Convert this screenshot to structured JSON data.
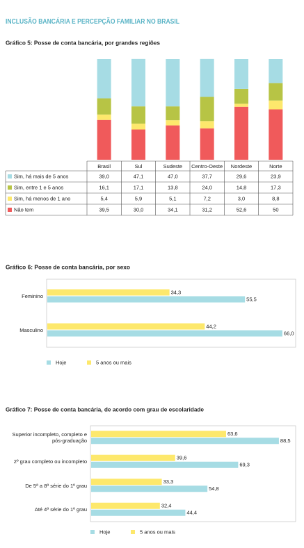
{
  "header": {
    "title": "INCLUSÃO BANCÁRIA E PERCEPÇÃO FAMILIAR NO BRASIL"
  },
  "chart_data": [
    {
      "type": "bar",
      "stacked": true,
      "title": "Gráfico 5: Posse de conta bancária, por grandes regiões",
      "categories": [
        "Brasil",
        "Sul",
        "Sudeste",
        "Centro-Oeste",
        "Nordeste",
        "Norte"
      ],
      "series": [
        {
          "name": "Sim, há mais de 5 anos",
          "color": "#a6dce4",
          "values": [
            39.0,
            47.1,
            47.0,
            37.7,
            29.6,
            23.9
          ],
          "value_labels": [
            "39,0",
            "47,1",
            "47,0",
            "37,7",
            "29,6",
            "23,9"
          ]
        },
        {
          "name": "Sim, entre 1 e 5 anos",
          "color": "#b7c445",
          "values": [
            16.1,
            17.1,
            13.8,
            24.0,
            14.8,
            17.3
          ],
          "value_labels": [
            "16,1",
            "17,1",
            "13,8",
            "24,0",
            "14,8",
            "17,3"
          ]
        },
        {
          "name": "Sim, há menos de 1 ano",
          "color": "#fde86c",
          "values": [
            5.4,
            5.9,
            5.1,
            7.2,
            3.0,
            8.8
          ],
          "value_labels": [
            "5,4",
            "5,9",
            "5,1",
            "7,2",
            "3,0",
            "8,8"
          ]
        },
        {
          "name": "Não tem",
          "color": "#f05a5b",
          "values": [
            39.5,
            30.0,
            34.1,
            31.2,
            52.6,
            50
          ],
          "value_labels": [
            "39,5",
            "30,0",
            "34,1",
            "31,2",
            "52,6",
            "50"
          ]
        }
      ]
    },
    {
      "type": "bar",
      "orientation": "horizontal",
      "title": "Gráfico 6: Posse de conta bancária, por sexo",
      "categories": [
        "Feminino",
        "Masculino"
      ],
      "series": [
        {
          "name": "Hoje",
          "color": "#a6dce4",
          "values": [
            55.5,
            66.0
          ],
          "value_labels": [
            "55,5",
            "66,0"
          ]
        },
        {
          "name": "5 anos ou mais",
          "color": "#fde86c",
          "values": [
            34.3,
            44.2
          ],
          "value_labels": [
            "34,3",
            "44,2"
          ]
        }
      ]
    },
    {
      "type": "bar",
      "orientation": "horizontal",
      "title": "Gráfico 7: Posse de conta bancária, de acordo com grau de escolaridade",
      "categories": [
        "Superior incompleto, completo e pós-graduação",
        "2º grau completo ou incompleto",
        "De 5ª a 8ª série do 1º grau",
        "Até 4ª série do 1º grau"
      ],
      "series": [
        {
          "name": "Hoje",
          "color": "#a6dce4",
          "values": [
            88.5,
            69.3,
            54.8,
            44.4
          ],
          "value_labels": [
            "88,5",
            "69,3",
            "54,8",
            "44,4"
          ]
        },
        {
          "name": "5 anos ou mais",
          "color": "#fde86c",
          "values": [
            63.6,
            39.6,
            33.3,
            32.4
          ],
          "value_labels": [
            "63,6",
            "39,6",
            "33,3",
            "32,4"
          ]
        }
      ]
    }
  ]
}
